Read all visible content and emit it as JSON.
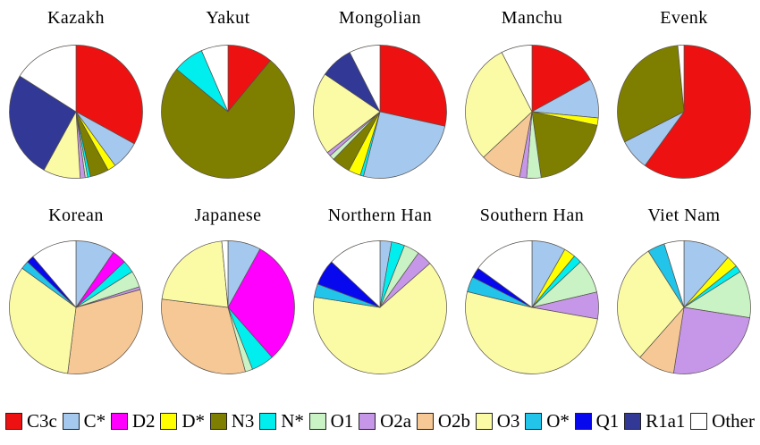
{
  "legend": {
    "items": [
      {
        "label": "C3c",
        "color": "#EE1111"
      },
      {
        "label": "C*",
        "color": "#A5C8EE"
      },
      {
        "label": "D2",
        "color": "#FF00FF"
      },
      {
        "label": "D*",
        "color": "#FFFF00"
      },
      {
        "label": "N3",
        "color": "#7E7E00"
      },
      {
        "label": "N*",
        "color": "#00EEEE"
      },
      {
        "label": "O1",
        "color": "#C9F2C5"
      },
      {
        "label": "O2a",
        "color": "#C697E8"
      },
      {
        "label": "O2b",
        "color": "#F6C896"
      },
      {
        "label": "O3",
        "color": "#FBFBA6"
      },
      {
        "label": "O*",
        "color": "#22C4EA"
      },
      {
        "label": "Q1",
        "color": "#0808EE"
      },
      {
        "label": "R1a1",
        "color": "#313896"
      },
      {
        "label": "Other",
        "color": "#FFFFFF"
      }
    ]
  },
  "chart_data": [
    {
      "type": "pie",
      "title": "Kazakh",
      "unit": "%",
      "slices": [
        {
          "label": "C3c",
          "value": 33
        },
        {
          "label": "C*",
          "value": 7
        },
        {
          "label": "D*",
          "value": 2
        },
        {
          "label": "N3",
          "value": 4.5
        },
        {
          "label": "N*",
          "value": 0.7
        },
        {
          "label": "O1",
          "value": 0.6
        },
        {
          "label": "O2a",
          "value": 1.2
        },
        {
          "label": "O3",
          "value": 9
        },
        {
          "label": "R1a1",
          "value": 26
        },
        {
          "label": "Other",
          "value": 16
        }
      ]
    },
    {
      "type": "pie",
      "title": "Yakut",
      "unit": "%",
      "slices": [
        {
          "label": "C3c",
          "value": 11
        },
        {
          "label": "N3",
          "value": 75
        },
        {
          "label": "N*",
          "value": 7.5
        },
        {
          "label": "Other",
          "value": 6.5
        }
      ]
    },
    {
      "type": "pie",
      "title": "Mongolian",
      "unit": "%",
      "slices": [
        {
          "label": "C3c",
          "value": 28.5
        },
        {
          "label": "C*",
          "value": 25.5
        },
        {
          "label": "N*",
          "value": 0.8
        },
        {
          "label": "D*",
          "value": 3
        },
        {
          "label": "N3",
          "value": 4.5
        },
        {
          "label": "O1",
          "value": 1.2
        },
        {
          "label": "O2a",
          "value": 1
        },
        {
          "label": "O3",
          "value": 20
        },
        {
          "label": "R1a1",
          "value": 8
        },
        {
          "label": "Other",
          "value": 7.5
        }
      ]
    },
    {
      "type": "pie",
      "title": "Manchu",
      "unit": "%",
      "slices": [
        {
          "label": "C3c",
          "value": 17
        },
        {
          "label": "C*",
          "value": 9.5
        },
        {
          "label": "D*",
          "value": 1.8
        },
        {
          "label": "N3",
          "value": 19.5
        },
        {
          "label": "O1",
          "value": 3.5
        },
        {
          "label": "O2a",
          "value": 1.7
        },
        {
          "label": "O2b",
          "value": 10
        },
        {
          "label": "O3",
          "value": 29.5
        },
        {
          "label": "Other",
          "value": 7.5
        }
      ]
    },
    {
      "type": "pie",
      "title": "Evenk",
      "unit": "%",
      "slices": [
        {
          "label": "C3c",
          "value": 60
        },
        {
          "label": "C*",
          "value": 7.5
        },
        {
          "label": "N3",
          "value": 31
        },
        {
          "label": "Other",
          "value": 1.5
        }
      ]
    },
    {
      "type": "pie",
      "title": "Korean",
      "unit": "%",
      "slices": [
        {
          "label": "C*",
          "value": 9.5
        },
        {
          "label": "D2",
          "value": 3.5
        },
        {
          "label": "N*",
          "value": 3
        },
        {
          "label": "O1",
          "value": 4
        },
        {
          "label": "O2a",
          "value": 0.7
        },
        {
          "label": "O2b",
          "value": 31.3
        },
        {
          "label": "O3",
          "value": 33
        },
        {
          "label": "O*",
          "value": 2
        },
        {
          "label": "Q1",
          "value": 1.8
        },
        {
          "label": "Other",
          "value": 11.2
        }
      ]
    },
    {
      "type": "pie",
      "title": "Japanese",
      "unit": "%",
      "slices": [
        {
          "label": "C*",
          "value": 8
        },
        {
          "label": "D2",
          "value": 30.5
        },
        {
          "label": "N*",
          "value": 5.5
        },
        {
          "label": "O1",
          "value": 1.8
        },
        {
          "label": "O2b",
          "value": 31.2
        },
        {
          "label": "O3",
          "value": 21.5
        },
        {
          "label": "Other",
          "value": 1.5
        }
      ]
    },
    {
      "type": "pie",
      "title": "Northern Han",
      "unit": "%",
      "slices": [
        {
          "label": "C*",
          "value": 2.8
        },
        {
          "label": "N*",
          "value": 3.2
        },
        {
          "label": "O1",
          "value": 3.8
        },
        {
          "label": "O2a",
          "value": 3.7
        },
        {
          "label": "O3",
          "value": 64
        },
        {
          "label": "O*",
          "value": 3.2
        },
        {
          "label": "Q1",
          "value": 6.3
        },
        {
          "label": "Other",
          "value": 13
        }
      ]
    },
    {
      "type": "pie",
      "title": "Southern Han",
      "unit": "%",
      "slices": [
        {
          "label": "C*",
          "value": 8.2
        },
        {
          "label": "D*",
          "value": 2.8
        },
        {
          "label": "N*",
          "value": 2
        },
        {
          "label": "O1",
          "value": 8.3
        },
        {
          "label": "O2a",
          "value": 6.5
        },
        {
          "label": "O3",
          "value": 51
        },
        {
          "label": "O*",
          "value": 3.7
        },
        {
          "label": "Q1",
          "value": 2.5
        },
        {
          "label": "Other",
          "value": 15
        }
      ]
    },
    {
      "type": "pie",
      "title": "Viet Nam",
      "unit": "%",
      "slices": [
        {
          "label": "C*",
          "value": 11.5
        },
        {
          "label": "D*",
          "value": 2.8
        },
        {
          "label": "N*",
          "value": 1.7
        },
        {
          "label": "O1",
          "value": 11.5
        },
        {
          "label": "O2a",
          "value": 25
        },
        {
          "label": "O2b",
          "value": 9
        },
        {
          "label": "O3",
          "value": 29.5
        },
        {
          "label": "O*",
          "value": 4.2
        },
        {
          "label": "Other",
          "value": 4.8
        }
      ]
    }
  ]
}
